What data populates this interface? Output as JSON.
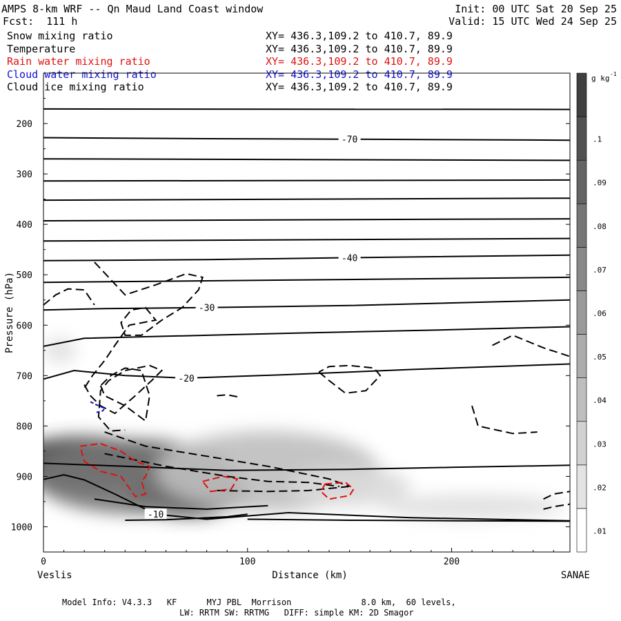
{
  "header": {
    "title": "AMPS 8-km WRF -- Qn Maud Land Coast window",
    "forecast": "Fcst:  111 h",
    "init": "Init: 00 UTC Sat 20 Sep 25",
    "valid": "Valid: 15 UTC Wed 24 Sep 25"
  },
  "fields": [
    {
      "name": "Snow mixing ratio",
      "xy": "XY= 436.3,109.2 to 410.7, 89.9",
      "color": "#000000"
    },
    {
      "name": "Temperature",
      "xy": "XY= 436.3,109.2 to 410.7, 89.9",
      "color": "#000000"
    },
    {
      "name": "Rain water mixing ratio",
      "xy": "XY= 436.3,109.2 to 410.7, 89.9",
      "color": "#e01010"
    },
    {
      "name": "Cloud water mixing ratio",
      "xy": "XY= 436.3,109.2 to 410.7, 89.9",
      "color": "#1010d0"
    },
    {
      "name": "Cloud ice mixing ratio",
      "xy": "XY= 436.3,109.2 to 410.7, 89.9",
      "color": "#000000"
    }
  ],
  "footer": {
    "line1": "Model Info: V4.3.3   KF      MYJ PBL  Morrison              8.0 km,  60 levels,",
    "line2": "LW: RRTM SW: RRTMG   DIFF: simple KM: 2D Smagor"
  },
  "chart_data": {
    "type": "cross-section",
    "ylabel": "Pressure (hPa)",
    "xlabel": "Distance (km)",
    "x_start_label": "Veslis",
    "x_end_label": "SANAE",
    "xlim": [
      0,
      258
    ],
    "ylim": [
      1050,
      100
    ],
    "x_ticks": [
      0,
      100,
      200
    ],
    "y_ticks": [
      200,
      300,
      400,
      500,
      600,
      700,
      800,
      900,
      1000
    ],
    "colorbar": {
      "units": "g kg-1",
      "ticks": [
        ".01",
        ".02",
        ".03",
        ".04",
        ".05",
        ".06",
        ".07",
        ".08",
        ".09",
        ".1"
      ],
      "range": [
        0,
        0.11
      ]
    },
    "temperature_contours": [
      {
        "label": "-70",
        "x": [
          0,
          80,
          150,
          258
        ],
        "p": [
          228,
          230,
          231,
          233
        ]
      },
      {
        "label": "",
        "x": [
          0,
          258
        ],
        "p": [
          171,
          172
        ]
      },
      {
        "label": "",
        "x": [
          0,
          258
        ],
        "p": [
          270,
          273
        ]
      },
      {
        "label": "",
        "x": [
          0,
          258
        ],
        "p": [
          314,
          312
        ]
      },
      {
        "label": "",
        "x": [
          0,
          258
        ],
        "p": [
          352,
          348
        ]
      },
      {
        "label": "",
        "x": [
          0,
          258
        ],
        "p": [
          393,
          389
        ]
      },
      {
        "label": "",
        "x": [
          0,
          258
        ],
        "p": [
          433,
          428
        ]
      },
      {
        "label": "-40",
        "x": [
          0,
          80,
          150,
          258
        ],
        "p": [
          472,
          470,
          466,
          461
        ]
      },
      {
        "label": "",
        "x": [
          0,
          80,
          160,
          258
        ],
        "p": [
          515,
          512,
          509,
          505
        ]
      },
      {
        "label": "-30",
        "x": [
          0,
          30,
          80,
          150,
          258
        ],
        "p": [
          570,
          567,
          565,
          561,
          550
        ]
      },
      {
        "label": "",
        "x": [
          0,
          20,
          60,
          120,
          200,
          258
        ],
        "p": [
          642,
          626,
          622,
          616,
          609,
          603
        ]
      },
      {
        "label": "-20",
        "x": [
          0,
          15,
          40,
          70,
          120,
          180,
          258
        ],
        "p": [
          707,
          690,
          700,
          705,
          698,
          688,
          677
        ]
      },
      {
        "label": "",
        "x": [
          0,
          40,
          90,
          150,
          200,
          258
        ],
        "p": [
          874,
          880,
          888,
          886,
          882,
          878
        ]
      },
      {
        "label": "-10",
        "x": [
          0,
          10,
          20,
          35,
          55,
          80,
          120,
          180,
          258
        ],
        "p": [
          906,
          897,
          907,
          935,
          975,
          985,
          972,
          982,
          988
        ]
      },
      {
        "label": "",
        "x": [
          25,
          50,
          80,
          110
        ],
        "p": [
          945,
          960,
          965,
          958
        ]
      },
      {
        "label": "",
        "x": [
          40,
          60,
          75,
          90,
          100
        ],
        "p": [
          987,
          986,
          983,
          980,
          975
        ]
      },
      {
        "label": "",
        "x": [
          100,
          150,
          200,
          258
        ],
        "p": [
          985,
          987,
          988,
          989
        ]
      }
    ],
    "cloud_ice_contours": [
      {
        "x": [
          0,
          6,
          12,
          20,
          25
        ],
        "p": [
          560,
          540,
          528,
          530,
          560
        ]
      },
      {
        "x": [
          25,
          40,
          55,
          70,
          78,
          76,
          68,
          58,
          48,
          40,
          38,
          43,
          50,
          55,
          42,
          35,
          30,
          24,
          20
        ],
        "p": [
          475,
          540,
          520,
          498,
          505,
          530,
          565,
          590,
          620,
          620,
          595,
          570,
          565,
          590,
          600,
          640,
          670,
          700,
          725
        ]
      },
      {
        "x": [
          28,
          30,
          40,
          50,
          52,
          48,
          40,
          33,
          28
        ],
        "p": [
          720,
          740,
          760,
          790,
          740,
          690,
          685,
          700,
          720
        ]
      },
      {
        "x": [
          20,
          23,
          28,
          35,
          45,
          53,
          58,
          52,
          40,
          32,
          28,
          27,
          33,
          40
        ],
        "p": [
          718,
          740,
          760,
          775,
          740,
          710,
          690,
          680,
          690,
          710,
          730,
          782,
          810,
          808
        ]
      },
      {
        "x": [
          85,
          90,
          95
        ],
        "p": [
          740,
          738,
          742
        ]
      },
      {
        "x": [
          135,
          140,
          148,
          158,
          165,
          162,
          150,
          140,
          135
        ],
        "p": [
          693,
          710,
          735,
          730,
          700,
          685,
          680,
          682,
          693
        ]
      },
      {
        "x": [
          220,
          230,
          245,
          258
        ],
        "p": [
          640,
          620,
          645,
          662
        ]
      },
      {
        "x": [
          210,
          213,
          230,
          242
        ],
        "p": [
          760,
          800,
          815,
          812
        ]
      },
      {
        "x": [
          30,
          50,
          80,
          110,
          140,
          150
        ],
        "p": [
          812,
          840,
          860,
          880,
          905,
          920
        ]
      },
      {
        "x": [
          30,
          60,
          90,
          110,
          130,
          145
        ],
        "p": [
          855,
          880,
          900,
          910,
          912,
          920
        ]
      },
      {
        "x": [
          85,
          110,
          130,
          150
        ],
        "p": [
          928,
          930,
          928,
          920
        ]
      },
      {
        "x": [
          245,
          250,
          258
        ],
        "p": [
          945,
          935,
          930
        ]
      },
      {
        "x": [
          245,
          250,
          258
        ],
        "p": [
          965,
          960,
          955
        ]
      }
    ],
    "rain_water_contours": [
      {
        "x": [
          18,
          28,
          38,
          45,
          52,
          50,
          48,
          50,
          45,
          38,
          28,
          20,
          18
        ],
        "p": [
          840,
          835,
          850,
          870,
          880,
          900,
          910,
          935,
          940,
          900,
          890,
          870,
          840
        ]
      },
      {
        "x": [
          78,
          88,
          95,
          92,
          82,
          78
        ],
        "p": [
          910,
          900,
          905,
          925,
          930,
          910
        ]
      },
      {
        "x": [
          138,
          148,
          152,
          150,
          140,
          136,
          138
        ],
        "p": [
          915,
          912,
          925,
          938,
          945,
          930,
          915
        ]
      }
    ],
    "cloud_water_contours": [
      {
        "x": [
          23,
          26,
          30,
          29,
          26
        ],
        "p": [
          752,
          758,
          765,
          770,
          773
        ]
      }
    ],
    "snow_blobs": [
      {
        "x": 20,
        "p": 875,
        "rx": 40,
        "rp": 55,
        "value": 0.1
      },
      {
        "x": 70,
        "p": 935,
        "rx": 30,
        "rp": 45,
        "value": 0.11
      },
      {
        "x": 45,
        "p": 900,
        "rx": 50,
        "rp": 75,
        "value": 0.07
      },
      {
        "x": 110,
        "p": 890,
        "rx": 55,
        "rp": 80,
        "value": 0.03
      },
      {
        "x": 150,
        "p": 920,
        "rx": 30,
        "rp": 40,
        "value": 0.015
      },
      {
        "x": 210,
        "p": 960,
        "rx": 45,
        "rp": 25,
        "value": 0.012
      },
      {
        "x": 8,
        "p": 650,
        "rx": 8,
        "rp": 25,
        "value": 0.012
      }
    ]
  }
}
